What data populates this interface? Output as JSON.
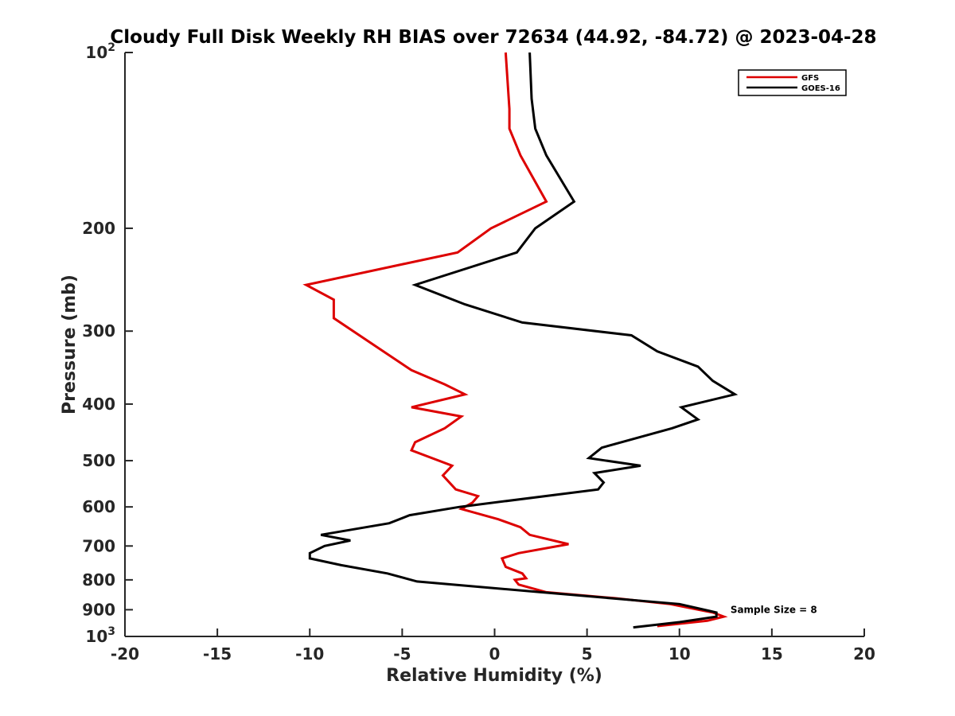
{
  "chart_data": {
    "type": "line",
    "title": "Cloudy Full Disk Weekly RH BIAS over 72634 (44.92, -84.72) @ 2023-04-28",
    "xlabel": "Relative Humidity (%)",
    "ylabel": "Pressure (mb)",
    "xlim": [
      -20,
      20
    ],
    "ylim": [
      100,
      1000
    ],
    "y_scale": "log",
    "y_reversed": true,
    "x_ticks": [
      -20,
      -15,
      -10,
      -5,
      0,
      5,
      10,
      15,
      20
    ],
    "x_tick_labels": [
      "-20",
      "-15",
      "-10",
      "-5",
      "0",
      "5",
      "10",
      "15",
      "20"
    ],
    "y_ticks": [
      100,
      200,
      300,
      400,
      500,
      600,
      700,
      800,
      900,
      1000
    ],
    "y_tick_labels": [
      {
        "base": "10",
        "exp": "2"
      },
      {
        "base": "200",
        "exp": ""
      },
      {
        "base": "300",
        "exp": ""
      },
      {
        "base": "400",
        "exp": ""
      },
      {
        "base": "500",
        "exp": ""
      },
      {
        "base": "600",
        "exp": ""
      },
      {
        "base": "700",
        "exp": ""
      },
      {
        "base": "800",
        "exp": ""
      },
      {
        "base": "900",
        "exp": ""
      },
      {
        "base": "10",
        "exp": "3"
      }
    ],
    "grid": false,
    "legend_position": "top-right",
    "annotation": {
      "text": "Sample Size = 8",
      "x": 12.5,
      "y": 900
    },
    "series": [
      {
        "name": "GFS",
        "color": "#dd0000",
        "points": [
          {
            "x": 0.6,
            "y": 100
          },
          {
            "x": 0.8,
            "y": 125
          },
          {
            "x": 0.8,
            "y": 135
          },
          {
            "x": 1.4,
            "y": 150
          },
          {
            "x": 2.8,
            "y": 180
          },
          {
            "x": -0.2,
            "y": 200
          },
          {
            "x": -2.0,
            "y": 220
          },
          {
            "x": -10.2,
            "y": 250
          },
          {
            "x": -8.7,
            "y": 265
          },
          {
            "x": -8.7,
            "y": 285
          },
          {
            "x": -5.7,
            "y": 330
          },
          {
            "x": -4.5,
            "y": 350
          },
          {
            "x": -2.7,
            "y": 370
          },
          {
            "x": -1.6,
            "y": 385
          },
          {
            "x": -4.5,
            "y": 405
          },
          {
            "x": -1.8,
            "y": 420
          },
          {
            "x": -2.7,
            "y": 440
          },
          {
            "x": -4.3,
            "y": 465
          },
          {
            "x": -4.5,
            "y": 480
          },
          {
            "x": -2.3,
            "y": 510
          },
          {
            "x": -2.8,
            "y": 530
          },
          {
            "x": -2.1,
            "y": 560
          },
          {
            "x": -0.9,
            "y": 575
          },
          {
            "x": -1.2,
            "y": 590
          },
          {
            "x": -1.8,
            "y": 605
          },
          {
            "x": 0.2,
            "y": 630
          },
          {
            "x": 1.4,
            "y": 650
          },
          {
            "x": 1.9,
            "y": 670
          },
          {
            "x": 4.0,
            "y": 695
          },
          {
            "x": 1.3,
            "y": 720
          },
          {
            "x": 0.4,
            "y": 735
          },
          {
            "x": 0.6,
            "y": 760
          },
          {
            "x": 1.5,
            "y": 780
          },
          {
            "x": 1.7,
            "y": 795
          },
          {
            "x": 1.1,
            "y": 800
          },
          {
            "x": 1.3,
            "y": 815
          },
          {
            "x": 2.2,
            "y": 830
          },
          {
            "x": 2.8,
            "y": 840
          },
          {
            "x": 6.5,
            "y": 860
          },
          {
            "x": 9.5,
            "y": 880
          },
          {
            "x": 11.8,
            "y": 910
          },
          {
            "x": 12.4,
            "y": 925
          },
          {
            "x": 11.5,
            "y": 940
          },
          {
            "x": 8.8,
            "y": 960
          }
        ]
      },
      {
        "name": "GOES-16",
        "color": "#000000",
        "points": [
          {
            "x": 1.9,
            "y": 100
          },
          {
            "x": 2.0,
            "y": 120
          },
          {
            "x": 2.2,
            "y": 135
          },
          {
            "x": 2.8,
            "y": 150
          },
          {
            "x": 4.3,
            "y": 180
          },
          {
            "x": 2.2,
            "y": 200
          },
          {
            "x": 1.2,
            "y": 220
          },
          {
            "x": -4.3,
            "y": 250
          },
          {
            "x": -1.6,
            "y": 270
          },
          {
            "x": 1.5,
            "y": 290
          },
          {
            "x": 7.4,
            "y": 305
          },
          {
            "x": 8.8,
            "y": 325
          },
          {
            "x": 11.0,
            "y": 345
          },
          {
            "x": 11.8,
            "y": 365
          },
          {
            "x": 13.0,
            "y": 385
          },
          {
            "x": 10.1,
            "y": 405
          },
          {
            "x": 11.0,
            "y": 425
          },
          {
            "x": 9.6,
            "y": 440
          },
          {
            "x": 5.8,
            "y": 475
          },
          {
            "x": 5.1,
            "y": 495
          },
          {
            "x": 7.9,
            "y": 510
          },
          {
            "x": 5.4,
            "y": 525
          },
          {
            "x": 5.9,
            "y": 545
          },
          {
            "x": 5.6,
            "y": 560
          },
          {
            "x": -1.9,
            "y": 600
          },
          {
            "x": -4.6,
            "y": 620
          },
          {
            "x": -5.7,
            "y": 640
          },
          {
            "x": -9.4,
            "y": 670
          },
          {
            "x": -7.8,
            "y": 685
          },
          {
            "x": -9.2,
            "y": 700
          },
          {
            "x": -10.0,
            "y": 720
          },
          {
            "x": -10.0,
            "y": 735
          },
          {
            "x": -8.3,
            "y": 755
          },
          {
            "x": -5.8,
            "y": 780
          },
          {
            "x": -4.2,
            "y": 805
          },
          {
            "x": 2.5,
            "y": 840
          },
          {
            "x": 10.0,
            "y": 880
          },
          {
            "x": 12.0,
            "y": 910
          },
          {
            "x": 12.0,
            "y": 925
          },
          {
            "x": 10.0,
            "y": 945
          },
          {
            "x": 7.5,
            "y": 965
          }
        ]
      }
    ]
  }
}
